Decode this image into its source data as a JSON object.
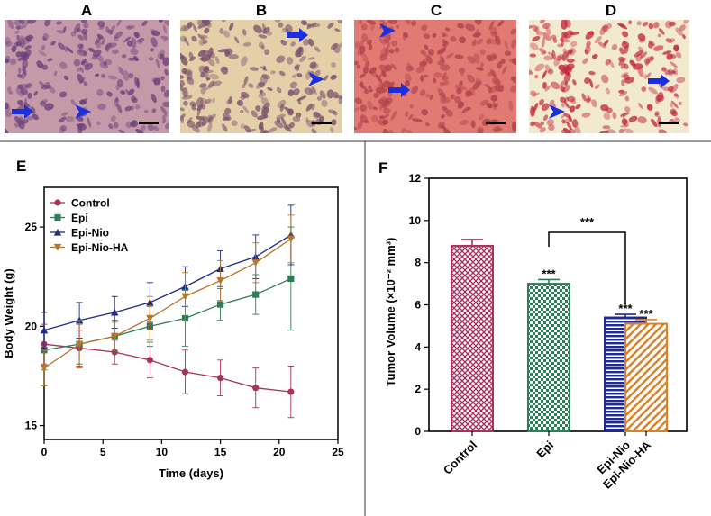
{
  "panels": {
    "A": "A",
    "B": "B",
    "C": "C",
    "D": "D",
    "E": "E",
    "F": "F"
  },
  "histology": [
    {
      "label": "A",
      "bg": "#c49aa8",
      "cell": "#6b3f7a",
      "arrows": 1,
      "arrowheads": 1
    },
    {
      "label": "B",
      "bg": "#e3cfa8",
      "cell": "#7a4f6c",
      "arrows": 1,
      "arrowheads": 1
    },
    {
      "label": "C",
      "bg": "#e07a72",
      "cell": "#b0404a",
      "arrows": 1,
      "arrowheads": 1
    },
    {
      "label": "D",
      "bg": "#f2ead0",
      "cell": "#c2283e",
      "arrows": 1,
      "arrowheads": 1
    }
  ],
  "colors": {
    "control": "#a8325e",
    "epi": "#2e7d55",
    "epi_nio": "#1f2a8a",
    "epi_nio_ha": "#b8742a",
    "arrow": "#1a2fe0"
  },
  "chart_data": [
    {
      "type": "line",
      "title": "",
      "xlabel": "Time (days)",
      "ylabel": "Body Weight (g)",
      "xlim": [
        0,
        25
      ],
      "ylim": [
        14.3,
        27
      ],
      "xticks": [
        0,
        5,
        10,
        15,
        20,
        25
      ],
      "yticks": [
        15,
        20,
        25
      ],
      "legend_position": "top-left",
      "x": [
        0,
        3,
        6,
        9,
        12,
        15,
        18,
        21
      ],
      "series": [
        {
          "name": "Control",
          "marker": "circle",
          "color": "#a8325e",
          "values": [
            19.1,
            18.9,
            18.7,
            18.3,
            17.7,
            17.4,
            16.9,
            16.7
          ],
          "errors": [
            1.0,
            0.9,
            0.6,
            0.9,
            1.1,
            0.9,
            1.0,
            1.3
          ]
        },
        {
          "name": "Epi",
          "marker": "square",
          "color": "#2e7d55",
          "values": [
            18.8,
            19.1,
            19.5,
            20.0,
            20.4,
            21.1,
            21.6,
            22.4
          ],
          "errors": [
            1.0,
            1.0,
            0.8,
            1.0,
            1.4,
            0.8,
            1.0,
            2.6
          ]
        },
        {
          "name": "Epi-Nio",
          "marker": "triangle-up",
          "color": "#1f2a8a",
          "values": [
            19.8,
            20.3,
            20.7,
            21.2,
            22.0,
            22.9,
            23.5,
            24.6
          ],
          "errors": [
            0.9,
            0.9,
            0.8,
            1.0,
            1.0,
            0.9,
            1.1,
            1.5
          ]
        },
        {
          "name": "Epi-Nio-HA",
          "marker": "triangle-down",
          "color": "#b8742a",
          "values": [
            17.9,
            19.1,
            19.5,
            20.4,
            21.5,
            22.3,
            23.2,
            24.4
          ],
          "errors": [
            0.9,
            1.2,
            0.7,
            1.1,
            1.2,
            1.0,
            1.0,
            1.2
          ]
        }
      ]
    },
    {
      "type": "bar",
      "title": "",
      "xlabel": "",
      "ylabel": "Tumor Volume (×10⁻² mm³)",
      "ylim": [
        0,
        12
      ],
      "yticks": [
        0,
        2,
        4,
        6,
        8,
        10,
        12
      ],
      "categories": [
        "Control",
        "Epi",
        "Epi-Nio",
        "Epi-Nio-HA"
      ],
      "values": [
        8.8,
        7.0,
        5.4,
        5.1
      ],
      "errors": [
        0.3,
        0.2,
        0.15,
        0.2
      ],
      "colors": [
        "#a8325e",
        "#2e7d55",
        "#1f2a8a",
        "#d9822b"
      ],
      "patterns": [
        "crosshatch",
        "checker",
        "horizontal",
        "diagonal"
      ],
      "annotations": [
        "",
        "***",
        "***",
        "***"
      ],
      "bracket": {
        "from": "Epi",
        "to": "Epi-Nio",
        "label": "***"
      }
    }
  ]
}
